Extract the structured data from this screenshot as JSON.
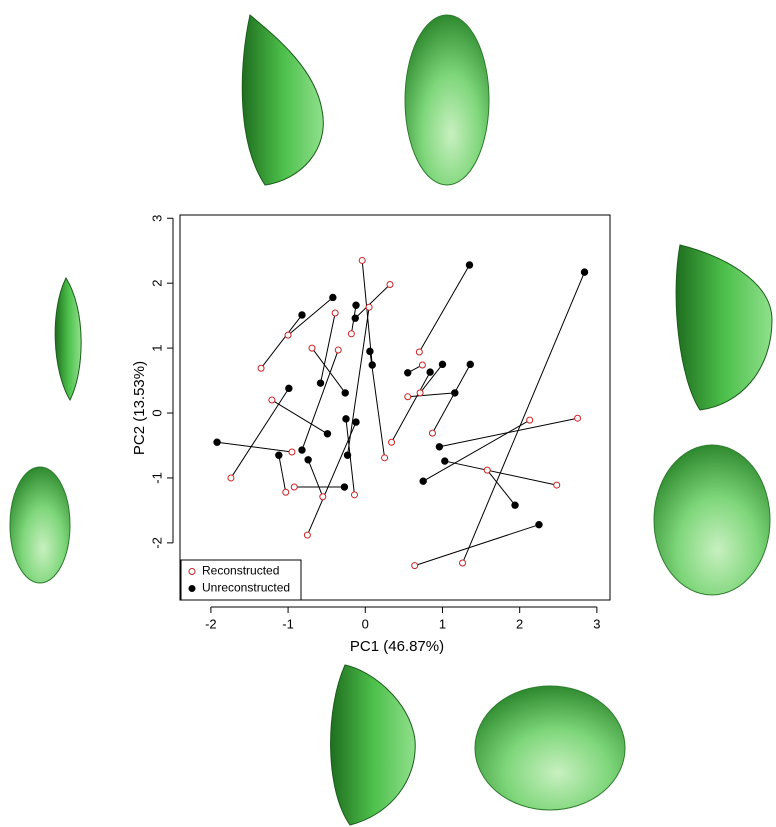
{
  "chart_data": {
    "type": "scatter",
    "xlabel": "PC1 (46.87%)",
    "ylabel": "PC2 (13.53%)",
    "xlim": [
      -2.4,
      3.17
    ],
    "ylim": [
      -2.88,
      3.05
    ],
    "xticks": [
      -2,
      -1,
      0,
      1,
      2,
      3
    ],
    "yticks": [
      -2,
      -1,
      0,
      1,
      2,
      3
    ],
    "legend": "bottom-left",
    "series": [
      {
        "name": "Reconstructed",
        "color": "#cc2222",
        "x": [
          0.32,
          -0.04,
          0.7,
          1.26,
          -1.0,
          -1.35,
          -0.39,
          0.05,
          -0.18,
          -0.69,
          0.25,
          -0.35,
          0.74,
          0.34,
          0.87,
          0.71,
          0.55,
          -1.21,
          -1.74,
          -0.95,
          2.75,
          2.13,
          1.58,
          2.48,
          0.64,
          -0.75,
          -0.92,
          -0.14,
          -0.55,
          -1.03
        ],
        "y": [
          1.98,
          2.35,
          0.94,
          -2.31,
          1.2,
          0.69,
          1.54,
          1.63,
          1.22,
          1.0,
          -0.69,
          0.97,
          0.74,
          -0.45,
          -0.31,
          0.31,
          0.25,
          0.2,
          -1.0,
          -0.6,
          -0.08,
          -0.11,
          -0.88,
          -1.11,
          -2.35,
          -1.88,
          -1.14,
          -1.26,
          -1.29,
          -1.22
        ]
      },
      {
        "name": "Unreconstructed",
        "color": "#000000",
        "x": [
          -0.13,
          0.09,
          1.35,
          2.84,
          -0.42,
          -0.82,
          -0.58,
          -0.23,
          -0.12,
          -0.26,
          0.06,
          -0.82,
          0.55,
          0.84,
          1.36,
          1.0,
          1.16,
          -0.49,
          -0.99,
          -1.92,
          0.96,
          0.75,
          1.94,
          1.03,
          2.25,
          -0.12,
          -0.27,
          -0.25,
          -0.74,
          -1.12
        ],
        "y": [
          1.46,
          0.74,
          2.28,
          2.17,
          1.78,
          1.51,
          0.46,
          -0.65,
          1.66,
          0.31,
          0.95,
          -0.57,
          0.62,
          0.63,
          0.75,
          0.75,
          0.31,
          -0.32,
          0.38,
          -0.45,
          -0.52,
          -1.05,
          -1.42,
          -0.74,
          -1.72,
          -0.14,
          -1.14,
          -0.09,
          -0.72,
          -0.65
        ]
      }
    ]
  }
}
